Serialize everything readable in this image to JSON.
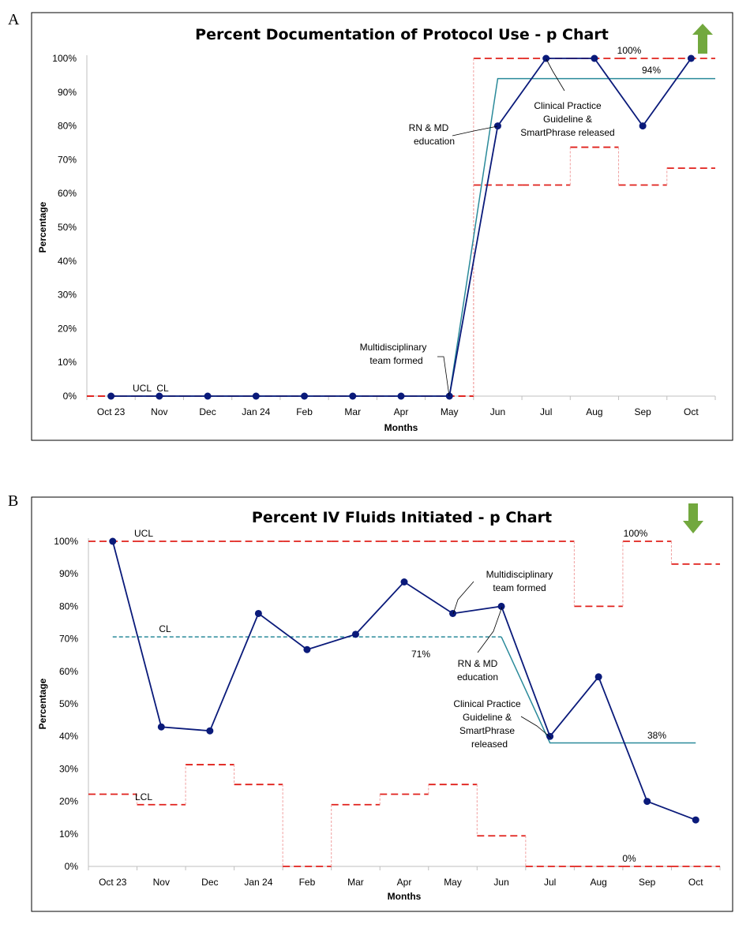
{
  "chart_data": [
    {
      "panel": "A",
      "type": "line",
      "title": "Percent Documentation of Protocol Use - p Chart",
      "xlabel": "Months",
      "ylabel": "Percentage",
      "ylim": [
        0,
        100
      ],
      "y_ticks": [
        "0%",
        "10%",
        "20%",
        "30%",
        "40%",
        "50%",
        "60%",
        "70%",
        "80%",
        "90%",
        "100%"
      ],
      "categories": [
        "Oct 23",
        "Nov",
        "Dec",
        "Jan 24",
        "Feb",
        "Mar",
        "Apr",
        "May",
        "Jun",
        "Jul",
        "Aug",
        "Sep",
        "Oct"
      ],
      "values": [
        0,
        0,
        0,
        0,
        0,
        0,
        0,
        0,
        80,
        100,
        100,
        80,
        100
      ],
      "center_line": [
        0,
        0,
        0,
        0,
        0,
        0,
        0,
        0,
        94,
        94,
        94,
        94,
        94
      ],
      "ucl": [
        0,
        0,
        0,
        0,
        0,
        0,
        0,
        0,
        100,
        100,
        100,
        100,
        100
      ],
      "lcl": [
        0,
        0,
        0,
        0,
        0,
        0,
        0,
        0,
        62.5,
        62.5,
        73.7,
        62.5,
        67.5
      ],
      "grid": false,
      "trend_arrow": "up",
      "colors": {
        "data": "#0a1a7a",
        "center": "#2a8a9a",
        "limits": "#e0201b",
        "arrow": "#72a83e"
      },
      "annotations": [
        {
          "text": "100%",
          "at": "UCL Aug–Oct"
        },
        {
          "text": "94%",
          "at": "CL Aug–Oct"
        },
        {
          "text": "UCL",
          "at": "Nov baseline"
        },
        {
          "text": "CL",
          "at": "Nov baseline"
        },
        {
          "text": "Multidisciplinary",
          "at": "May"
        },
        {
          "text": "team formed",
          "at": "May"
        },
        {
          "text": "RN & MD",
          "at": "Jun"
        },
        {
          "text": "education",
          "at": "Jun"
        },
        {
          "text": "Clinical Practice",
          "at": "Jul"
        },
        {
          "text": "Guideline &",
          "at": "Jul"
        },
        {
          "text": "SmartPhrase released",
          "at": "Jul"
        }
      ]
    },
    {
      "panel": "B",
      "type": "line",
      "title": "Percent IV Fluids Initiated - p Chart",
      "xlabel": "Months",
      "ylabel": "Percentage",
      "ylim": [
        0,
        100
      ],
      "y_ticks": [
        "0%",
        "10%",
        "20%",
        "30%",
        "40%",
        "50%",
        "60%",
        "70%",
        "80%",
        "90%",
        "100%"
      ],
      "categories": [
        "Oct 23",
        "Nov",
        "Dec",
        "Jan 24",
        "Feb",
        "Mar",
        "Apr",
        "May",
        "Jun",
        "Jul",
        "Aug",
        "Sep",
        "Oct"
      ],
      "values": [
        100,
        42.9,
        41.7,
        77.8,
        66.7,
        71.4,
        87.5,
        77.8,
        80,
        40,
        58.3,
        20,
        14.3
      ],
      "center_line": [
        70.6,
        70.6,
        70.6,
        70.6,
        70.6,
        70.6,
        70.6,
        70.6,
        70.6,
        38,
        38,
        38,
        38
      ],
      "ucl": [
        100,
        100,
        100,
        100,
        100,
        100,
        100,
        100,
        100,
        100,
        80,
        100,
        93
      ],
      "lcl": [
        22.2,
        19,
        31.3,
        25.2,
        0,
        19,
        22.2,
        25.2,
        9.4,
        0,
        0,
        0,
        0
      ],
      "grid": false,
      "trend_arrow": "down",
      "colors": {
        "data": "#0a1a7a",
        "center": "#2a8a9a",
        "limits": "#e0201b",
        "arrow": "#72a83e"
      },
      "annotations": [
        {
          "text": "UCL",
          "at": "Nov"
        },
        {
          "text": "CL",
          "at": "Nov"
        },
        {
          "text": "LCL",
          "at": "Nov"
        },
        {
          "text": "71%",
          "at": "Apr"
        },
        {
          "text": "100%",
          "at": "Sep"
        },
        {
          "text": "38%",
          "at": "Sep"
        },
        {
          "text": "0%",
          "at": "Sep"
        },
        {
          "text": "Multidisciplinary",
          "at": "May"
        },
        {
          "text": "team formed",
          "at": "May"
        },
        {
          "text": "RN & MD",
          "at": "Jun"
        },
        {
          "text": "education",
          "at": "Jun"
        },
        {
          "text": "Clinical Practice",
          "at": "Jul"
        },
        {
          "text": "Guideline &",
          "at": "Jul"
        },
        {
          "text": "SmartPhrase",
          "at": "Jul"
        },
        {
          "text": "released",
          "at": "Jul"
        }
      ]
    }
  ]
}
